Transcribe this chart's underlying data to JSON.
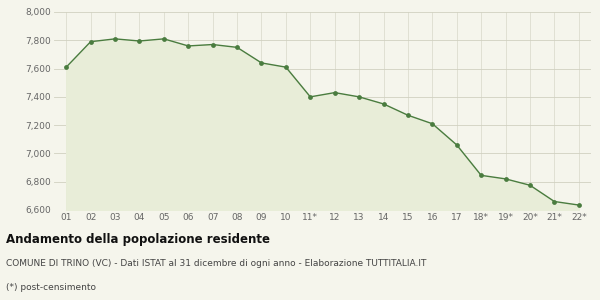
{
  "x_labels": [
    "01",
    "02",
    "03",
    "04",
    "05",
    "06",
    "07",
    "08",
    "09",
    "10",
    "11*",
    "12",
    "13",
    "14",
    "15",
    "16",
    "17",
    "18*",
    "19*",
    "20*",
    "21*",
    "22*"
  ],
  "y_values": [
    7610,
    7790,
    7810,
    7795,
    7810,
    7760,
    7770,
    7750,
    7640,
    7610,
    7400,
    7430,
    7400,
    7350,
    7270,
    7210,
    7060,
    6845,
    6820,
    6775,
    6660,
    6635
  ],
  "line_color": "#4a7c3f",
  "fill_color": "#e8edd8",
  "marker_color": "#4a7c3f",
  "background_color": "#f5f5ec",
  "grid_color": "#d0d0c0",
  "ylim": [
    6600,
    8000
  ],
  "yticks": [
    6600,
    6800,
    7000,
    7200,
    7400,
    7600,
    7800,
    8000
  ],
  "title_main": "Andamento della popolazione residente",
  "subtitle": "COMUNE DI TRINO (VC) - Dati ISTAT al 31 dicembre di ogni anno - Elaborazione TUTTITALIA.IT",
  "footnote": "(*) post-censimento",
  "title_fontsize": 8.5,
  "subtitle_fontsize": 6.5,
  "footnote_fontsize": 6.5,
  "tick_fontsize": 6.5,
  "ytick_fontsize": 6.5
}
